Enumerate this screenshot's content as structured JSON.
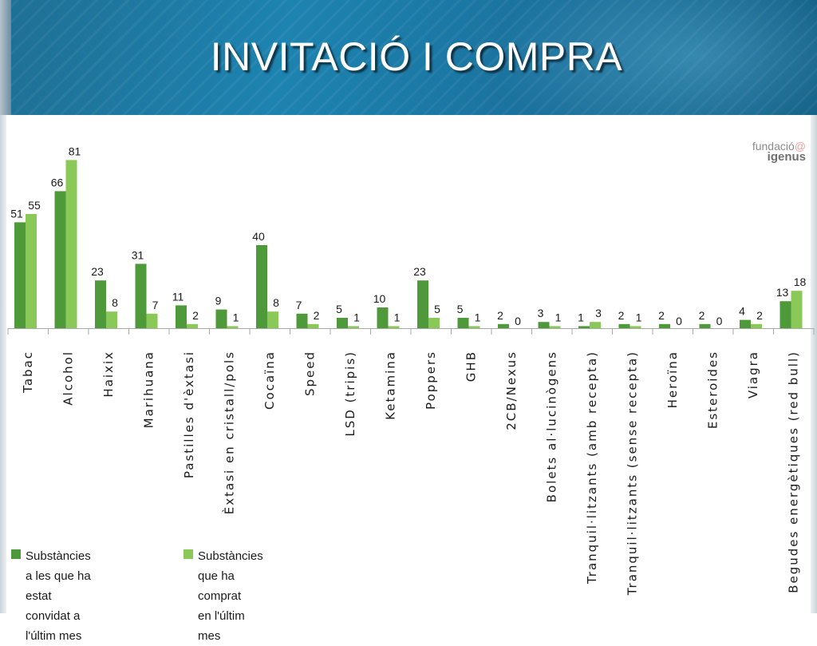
{
  "slide": {
    "title": "INVITACIÓ I COMPRA",
    "logo_line1": "fundació",
    "logo_at": "@",
    "logo_line2": "igenus"
  },
  "colors": {
    "series_invited": "#4e9a3a",
    "series_bought": "#8ac858",
    "axis": "#a9a9a9",
    "header": "#1d83b0"
  },
  "legend": [
    {
      "line1": "Substàncies a les que ha",
      "line2": "estat convidat a l'últim mes"
    },
    {
      "line1": "Substàncies que ha comprat",
      "line2": "en l'últim mes"
    }
  ],
  "chart_data": {
    "type": "bar",
    "title": "",
    "xlabel": "",
    "ylabel": "",
    "ylim": [
      0,
      95
    ],
    "grid": false,
    "legend_position": "bottom-left",
    "categories": [
      "Tabac",
      "Alcohol",
      "Haixix",
      "Marihuana",
      "Pastilles d'èxtasi",
      "Èxtasi en cristall/pols",
      "Cocaïna",
      "Speed",
      "LSD (tripis)",
      "Ketamina",
      "Poppers",
      "GHB",
      "2CB/Nexus",
      "Bolets al·lucinògens",
      "Tranquil·litzants (amb recepta)",
      "Tranquil·litzants (sense recepta)",
      "Heroïna",
      "Esteroides",
      "Viagra",
      "Begudes energètiques (red bull)"
    ],
    "series": [
      {
        "name": "Substàncies a les que ha estat convidat a l'últim mes",
        "values": [
          51,
          66,
          23,
          31,
          11,
          9,
          40,
          7,
          5,
          10,
          23,
          5,
          2,
          3,
          1,
          2,
          2,
          2,
          4,
          13
        ],
        "labels": [
          "51",
          "66",
          "23",
          "31",
          "11",
          "9",
          "40",
          "7",
          "5",
          "10",
          "23",
          "5",
          "2",
          "3",
          "1",
          "2",
          "2",
          "2",
          "4",
          "13"
        ]
      },
      {
        "name": "Substàncies que ha comprat en l'últim mes",
        "values": [
          55,
          81,
          8,
          7,
          2,
          1,
          8,
          2,
          1,
          1,
          5,
          1,
          0,
          1,
          3,
          1,
          0,
          0,
          2,
          18
        ],
        "labels": [
          "55",
          "81",
          "8",
          "7",
          "2",
          "1",
          "8",
          "2",
          "1",
          "1",
          "5",
          "1",
          "0",
          "1",
          "3",
          "1",
          "0",
          "0",
          "2",
          "18"
        ]
      }
    ]
  }
}
